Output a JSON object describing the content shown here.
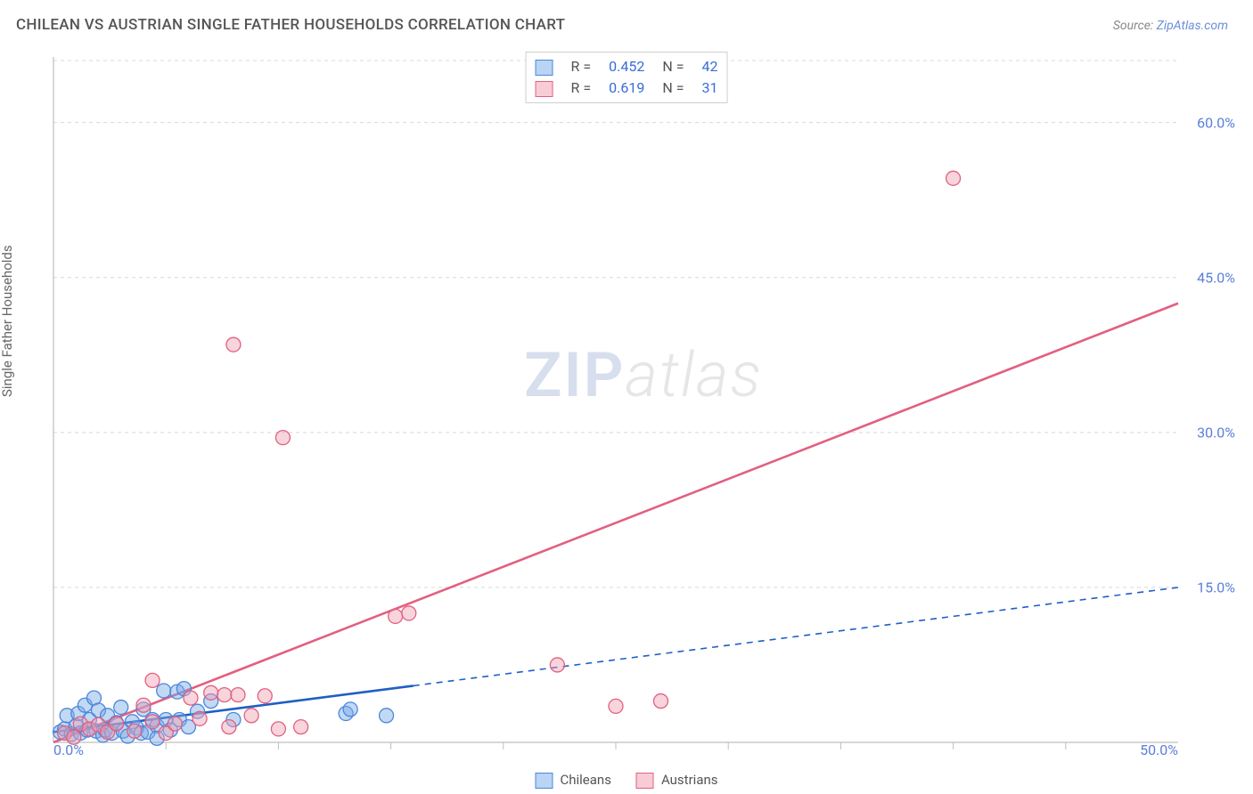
{
  "title": "CHILEAN VS AUSTRIAN SINGLE FATHER HOUSEHOLDS CORRELATION CHART",
  "source_prefix": "Source: ",
  "source_link": "ZipAtlas.com",
  "y_axis_label": "Single Father Households",
  "watermark_zip": "ZIP",
  "watermark_atlas": "atlas",
  "bottom_legend": {
    "series1": "Chileans",
    "series2": "Austrians"
  },
  "stat_legend": {
    "rows": [
      {
        "r_label": "R =",
        "r_value": "0.452",
        "n_label": "N =",
        "n_value": "42",
        "swatch_fill": "#b9d4f4",
        "swatch_stroke": "#4d86dc"
      },
      {
        "r_label": "R =",
        "r_value": "0.619",
        "n_label": "N =",
        "n_value": "31",
        "swatch_fill": "#f8ccd6",
        "swatch_stroke": "#e2607f"
      }
    ]
  },
  "chart": {
    "type": "scatter",
    "xlim": [
      0,
      50
    ],
    "ylim": [
      0,
      66
    ],
    "x_ticks_major": [
      0,
      50
    ],
    "x_ticks_minor": [
      5,
      10,
      15,
      20,
      25,
      30,
      35,
      40,
      45
    ],
    "y_ticks": [
      15,
      30,
      45,
      60
    ],
    "y_tick_labels": [
      "15.0%",
      "30.0%",
      "45.0%",
      "60.0%"
    ],
    "x_tick_labels": [
      "0.0%",
      "50.0%"
    ],
    "grid_color": "#d8d8d8",
    "axis_color": "#bfbfbf",
    "label_color": "#5a80d8",
    "title_color": "#555555",
    "background": "#ffffff",
    "marker_radius": 8,
    "marker_stroke_width": 1.3,
    "series": {
      "chileans": {
        "color_fill": "rgba(120,170,230,0.45)",
        "color_stroke": "#4d86dc",
        "line_color": "#1f5fc4",
        "line_solid_to_x": 16,
        "line_dashed": true,
        "trend": {
          "x1": 0,
          "y1": 1.0,
          "x2": 50,
          "y2": 15.0
        },
        "points": [
          [
            0.3,
            1.0
          ],
          [
            0.5,
            1.3
          ],
          [
            0.6,
            2.6
          ],
          [
            0.8,
            0.8
          ],
          [
            1.0,
            1.6
          ],
          [
            1.1,
            2.8
          ],
          [
            1.2,
            0.9
          ],
          [
            1.4,
            3.6
          ],
          [
            1.5,
            1.2
          ],
          [
            1.6,
            2.2
          ],
          [
            1.8,
            4.3
          ],
          [
            1.9,
            1.1
          ],
          [
            2.0,
            3.1
          ],
          [
            2.2,
            0.7
          ],
          [
            2.3,
            1.2
          ],
          [
            2.4,
            2.6
          ],
          [
            2.6,
            0.9
          ],
          [
            2.8,
            1.9
          ],
          [
            3.0,
            3.4
          ],
          [
            3.1,
            1.1
          ],
          [
            3.3,
            0.6
          ],
          [
            3.5,
            2.0
          ],
          [
            3.7,
            1.4
          ],
          [
            3.9,
            0.9
          ],
          [
            4.0,
            3.2
          ],
          [
            4.2,
            1.0
          ],
          [
            4.4,
            2.2
          ],
          [
            4.6,
            1.6
          ],
          [
            4.6,
            0.4
          ],
          [
            4.9,
            5.0
          ],
          [
            5.0,
            2.2
          ],
          [
            5.2,
            1.2
          ],
          [
            5.5,
            4.9
          ],
          [
            5.6,
            2.2
          ],
          [
            5.8,
            5.2
          ],
          [
            6.0,
            1.5
          ],
          [
            6.4,
            3.0
          ],
          [
            7.0,
            4.0
          ],
          [
            8.0,
            2.2
          ],
          [
            13.0,
            2.8
          ],
          [
            13.2,
            3.2
          ],
          [
            14.8,
            2.6
          ]
        ]
      },
      "austrians": {
        "color_fill": "rgba(240,160,180,0.45)",
        "color_stroke": "#e2607f",
        "line_color": "#e2607f",
        "line_solid_to_x": 50,
        "line_dashed": false,
        "trend": {
          "x1": 0,
          "y1": 0.0,
          "x2": 50,
          "y2": 42.5
        },
        "points": [
          [
            0.5,
            0.9
          ],
          [
            0.9,
            0.5
          ],
          [
            1.2,
            1.8
          ],
          [
            1.6,
            1.3
          ],
          [
            2.0,
            1.7
          ],
          [
            2.4,
            1.0
          ],
          [
            2.8,
            1.8
          ],
          [
            3.6,
            1.1
          ],
          [
            4.0,
            3.6
          ],
          [
            4.4,
            2.0
          ],
          [
            4.4,
            6.0
          ],
          [
            5.0,
            0.9
          ],
          [
            5.4,
            1.8
          ],
          [
            6.1,
            4.3
          ],
          [
            6.5,
            2.3
          ],
          [
            7.0,
            4.8
          ],
          [
            7.6,
            4.6
          ],
          [
            7.8,
            1.5
          ],
          [
            8.0,
            38.5
          ],
          [
            8.2,
            4.6
          ],
          [
            8.8,
            2.6
          ],
          [
            9.4,
            4.5
          ],
          [
            10.0,
            1.3
          ],
          [
            10.2,
            29.5
          ],
          [
            11.0,
            1.5
          ],
          [
            15.2,
            12.2
          ],
          [
            15.8,
            12.5
          ],
          [
            22.4,
            7.5
          ],
          [
            25.0,
            3.5
          ],
          [
            27.0,
            4.0
          ],
          [
            40.0,
            54.6
          ]
        ]
      }
    }
  }
}
